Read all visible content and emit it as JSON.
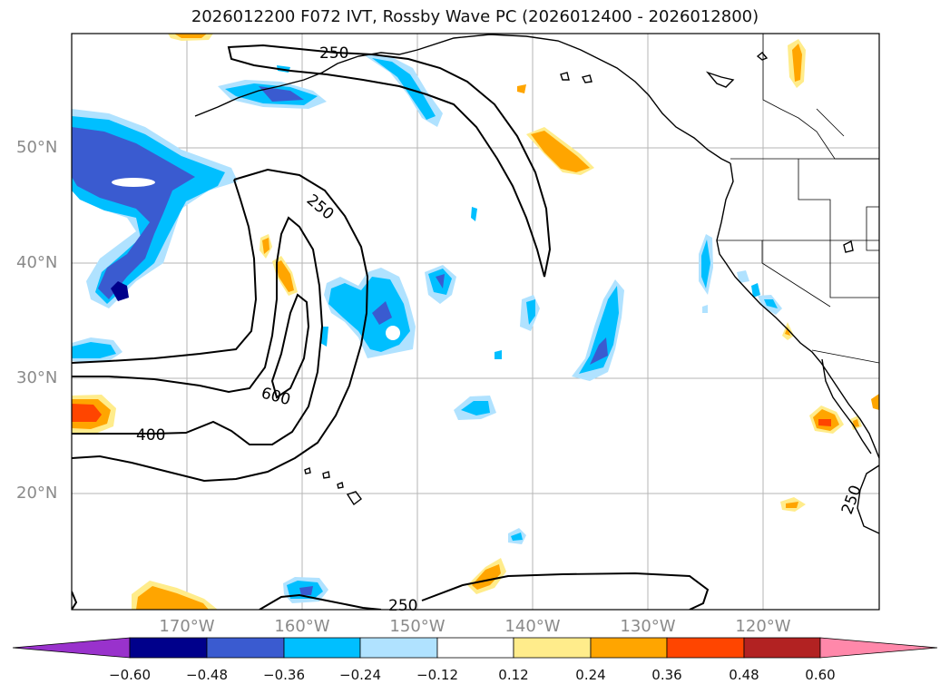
{
  "title": "2026012200 F072 IVT, Rossby Wave PC (2026012400 - 2026012800)",
  "map": {
    "projection": "cylindrical",
    "extent": {
      "lon_min": -180,
      "lon_max": -110,
      "lat_min": 10,
      "lat_max": 60
    },
    "gridlines": true,
    "lat_labels": [
      "50°N",
      "40°N",
      "30°N",
      "20°N"
    ],
    "lon_labels": [
      "170°W",
      "160°W",
      "150°W",
      "140°W",
      "130°W",
      "120°W"
    ],
    "contour_labels": [
      "250",
      "250",
      "600",
      "400",
      "250",
      "250"
    ]
  },
  "colorbar": {
    "ticks": [
      "−0.60",
      "−0.48",
      "−0.36",
      "−0.24",
      "−0.12",
      "0.12",
      "0.24",
      "0.36",
      "0.48",
      "0.60"
    ],
    "colors": [
      "#9932cc",
      "#00008b",
      "#3a5bd0",
      "#00bfff",
      "#b0e2ff",
      "#ffffff",
      "#ffec8b",
      "#ffa500",
      "#ff4500",
      "#b22222",
      "#ff88aa"
    ]
  }
}
